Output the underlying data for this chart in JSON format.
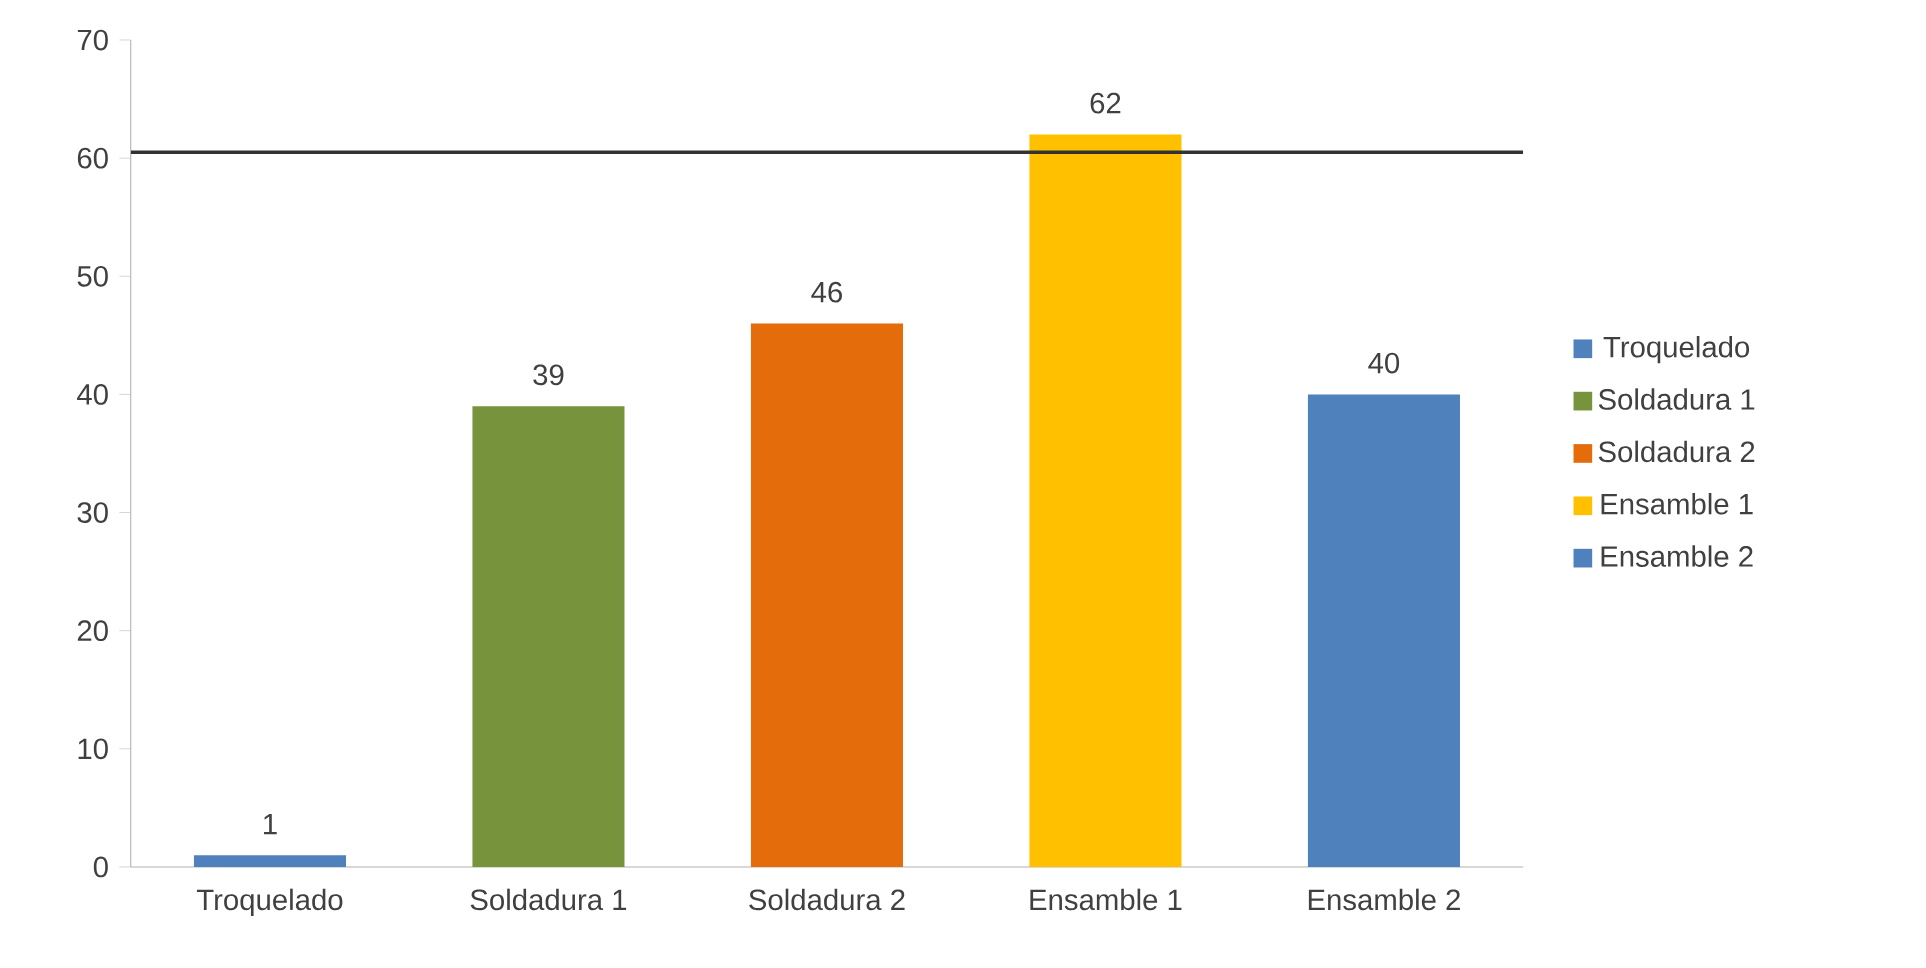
{
  "chart_data": {
    "type": "bar",
    "categories": [
      "Troquelado",
      "Soldadura 1",
      "Soldadura 2",
      "Ensamble 1",
      "Ensamble 2"
    ],
    "series": [
      {
        "name": "Troquelado",
        "color": "#4f81bd",
        "values": [
          1,
          null,
          null,
          null,
          null
        ]
      },
      {
        "name": "Soldadura 1",
        "color": "#77933c",
        "values": [
          null,
          39,
          null,
          null,
          null
        ]
      },
      {
        "name": "Soldadura 2",
        "color": "#e46c0a",
        "values": [
          null,
          null,
          46,
          null,
          null
        ]
      },
      {
        "name": "Ensamble 1",
        "color": "#ffc000",
        "values": [
          null,
          null,
          null,
          62,
          null
        ]
      },
      {
        "name": "Ensamble 2",
        "color": "#4f81bd",
        "values": [
          null,
          null,
          null,
          null,
          40
        ]
      }
    ],
    "ylim": [
      0,
      70
    ],
    "yticks": [
      0,
      10,
      20,
      30,
      40,
      50,
      60,
      70
    ],
    "ref_lines": [
      {
        "axis": "y",
        "value": 60.5,
        "color": "#333333"
      }
    ],
    "data_labels": true,
    "legend": "right",
    "grid": false
  }
}
